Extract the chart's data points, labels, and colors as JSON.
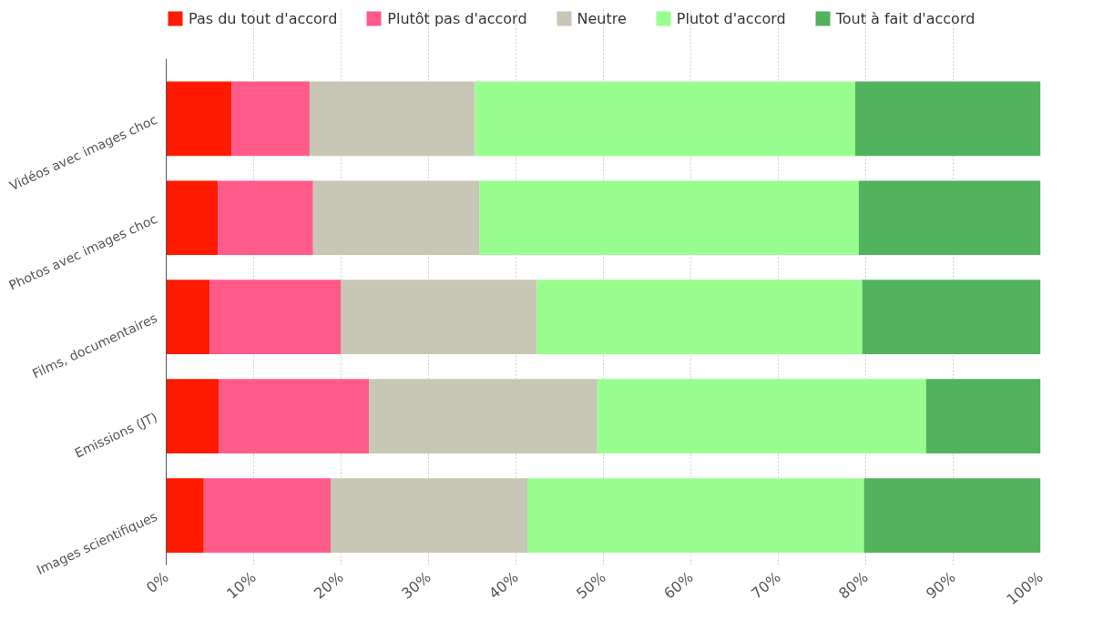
{
  "chart_data": {
    "type": "bar",
    "orientation": "horizontal",
    "stacked": true,
    "categories": [
      "Vidéos avec images choc",
      "Photos avec images choc",
      "Films, documentaires",
      "Emissions (JT)",
      "Images scientifiques"
    ],
    "series": [
      {
        "name": "Pas du tout d'accord",
        "color": "#ff1a00",
        "values": [
          7.5,
          5.9,
          5.0,
          6.0,
          4.3
        ]
      },
      {
        "name": "Plutôt pas d'accord",
        "color": "#ff5a8a",
        "values": [
          8.9,
          10.9,
          15.0,
          17.2,
          14.5
        ]
      },
      {
        "name": "Neutre",
        "color": "#c8c6b4",
        "values": [
          18.9,
          19.0,
          22.4,
          26.1,
          22.5
        ]
      },
      {
        "name": "Plutot d'accord",
        "color": "#98ff8f",
        "values": [
          43.5,
          43.4,
          37.2,
          37.6,
          38.5
        ]
      },
      {
        "name": "Tout à fait d'accord",
        "color": "#52b35e",
        "values": [
          21.2,
          20.8,
          20.4,
          13.1,
          20.2
        ]
      }
    ],
    "xlim": [
      0,
      100
    ],
    "xticks": [
      {
        "value": 0,
        "label": "0%"
      },
      {
        "value": 10,
        "label": "10%"
      },
      {
        "value": 20,
        "label": "20%"
      },
      {
        "value": 30,
        "label": "30%"
      },
      {
        "value": 40,
        "label": "40%"
      },
      {
        "value": 50,
        "label": "50%"
      },
      {
        "value": 60,
        "label": "60%"
      },
      {
        "value": 70,
        "label": "70%"
      },
      {
        "value": 80,
        "label": "80%"
      },
      {
        "value": 90,
        "label": "90%"
      },
      {
        "value": 100,
        "label": "100%"
      }
    ],
    "grid": "x",
    "legend": "top"
  }
}
